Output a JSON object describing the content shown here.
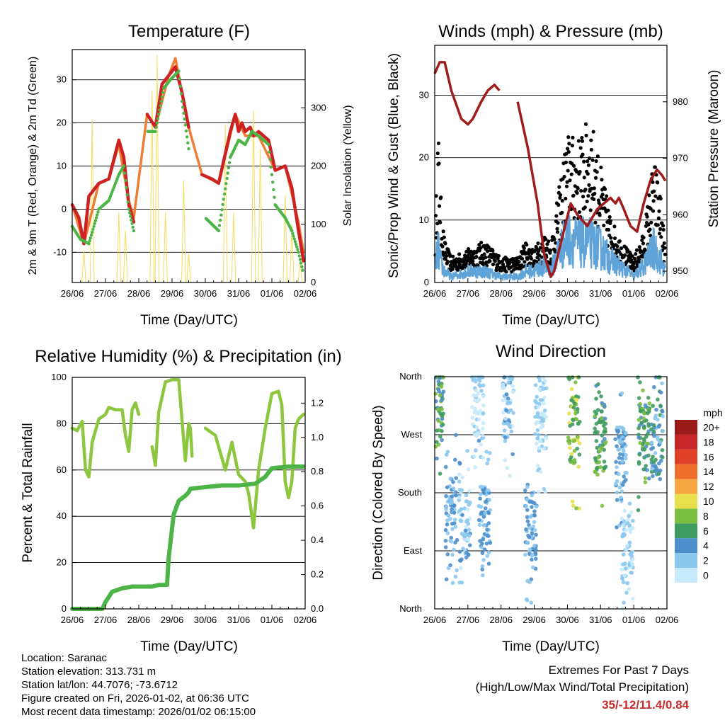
{
  "x_ticks": [
    "26/06",
    "27/06",
    "28/06",
    "29/06",
    "30/06",
    "31/06",
    "01/06",
    "02/06"
  ],
  "panels": {
    "temperature": {
      "title": "Temperature (F)",
      "xlabel": "Time (Day/UTC)",
      "ylabel_left": "2m & 9m T (Red, Orange) & 2m Td (Green)",
      "ylabel_right": "Solar Insolation (Yellow)"
    },
    "winds": {
      "title": "Winds (mph) & Pressure (mb)",
      "xlabel": "Time (Day/UTC)",
      "ylabel_left": "Sonic/Prop Wind & Gust (Blue, Black)",
      "ylabel_right": "Station Pressure (Maroon)"
    },
    "humidity": {
      "title": "Relative Humidity (%) & Precipitation (in)",
      "xlabel": "Time (Day/UTC)",
      "ylabel_left": "Percent & Total Rainfall"
    },
    "direction": {
      "title": "Wind Direction",
      "xlabel": "Time (Day/UTC)",
      "ylabel_left": "Direction (Colored By Speed)",
      "colorbar_title": "mph"
    }
  },
  "chart_data": [
    {
      "type": "line",
      "title": "Temperature (F)",
      "xlabel": "Time (Day/UTC)",
      "x_range_days": [
        0,
        7
      ],
      "ylim": [
        -17,
        37
      ],
      "yticks": [
        -10,
        0,
        10,
        20,
        30
      ],
      "y2lim": [
        0,
        400
      ],
      "y2ticks": [
        0,
        100,
        200,
        300
      ],
      "series": [
        {
          "name": "2m T",
          "color": "#cc2222",
          "x": [
            0,
            0.2,
            0.35,
            0.5,
            0.8,
            1.1,
            1.4,
            1.55,
            1.7,
            1.85,
            1.9,
            2.25,
            2.5,
            2.7,
            2.9,
            3.1,
            3.3,
            3.5,
            3.55,
            3.9,
            4.2,
            4.4,
            4.75,
            4.9,
            5.0,
            5.1,
            5.2,
            5.35,
            5.45,
            5.6,
            5.9,
            6.1,
            6.4,
            6.6,
            6.8,
            6.95
          ],
          "values": [
            1,
            -2,
            -8,
            3,
            6,
            7,
            16,
            12,
            1,
            -3,
            null,
            22,
            19,
            29,
            31,
            33,
            27,
            19,
            null,
            8,
            7,
            6,
            18,
            22,
            18,
            20,
            18,
            19,
            17,
            18,
            16,
            9,
            10,
            5,
            -5,
            -12
          ]
        },
        {
          "name": "9m T",
          "color": "#f07d33",
          "x": [
            0,
            0.35,
            0.8,
            1.1,
            1.4,
            1.7,
            1.85,
            2.25,
            2.5,
            2.9,
            3.1,
            3.3,
            3.5,
            3.9,
            4.4,
            4.9,
            5.2,
            5.6,
            6.1,
            6.4,
            6.8,
            6.95
          ],
          "values": [
            1,
            -8,
            6,
            7,
            15,
            2,
            -2,
            22,
            19,
            31,
            35,
            27,
            19,
            8,
            6,
            22,
            17,
            17,
            9,
            10,
            -3,
            -10
          ]
        },
        {
          "name": "2m Td",
          "color": "#4db548",
          "x": [
            0,
            0.25,
            0.5,
            0.8,
            1.1,
            1.4,
            1.55,
            1.7,
            1.85,
            1.9,
            2.25,
            2.5,
            2.75,
            2.95,
            3.2,
            3.3,
            3.5,
            3.55,
            4.0,
            4.4,
            4.75,
            5.0,
            5.2,
            5.4,
            5.6,
            5.9,
            6.1,
            6.4,
            6.6,
            6.8,
            6.95
          ],
          "values": [
            -4,
            -7,
            -8,
            0,
            2,
            8,
            10,
            0,
            -5,
            null,
            18,
            18,
            28,
            30,
            32,
            25,
            14,
            null,
            -2,
            -5,
            12,
            16,
            15,
            18,
            17,
            15,
            1,
            -2,
            -5,
            -10,
            -15
          ]
        },
        {
          "name": "Solar Insolation",
          "axis": "y2",
          "color": "#f4dc5c",
          "peaks_x": [
            0.35,
            0.6,
            1.4,
            1.6,
            2.4,
            2.55,
            2.8,
            3.35,
            3.5,
            4.6,
            4.85,
            5.45,
            5.65,
            6.4,
            6.6,
            6.85
          ],
          "peaks_y": [
            55,
            280,
            120,
            90,
            330,
            390,
            120,
            175,
            50,
            270,
            120,
            295,
            230,
            150,
            100,
            40
          ]
        }
      ]
    },
    {
      "type": "scatter",
      "title": "Winds (mph) & Pressure (mb)",
      "xlabel": "Time (Day/UTC)",
      "x_range_days": [
        0,
        7
      ],
      "ylim": [
        0,
        38
      ],
      "yticks": [
        0,
        10,
        20,
        30
      ],
      "y2lim": [
        948,
        990
      ],
      "y2ticks": [
        950,
        960,
        970,
        980
      ],
      "series": [
        {
          "name": "Wind gust",
          "color": "#000000",
          "x": [
            0,
            0.1,
            0.2,
            0.3,
            0.5,
            1.0,
            1.5,
            2.0,
            2.5,
            2.75,
            3.0,
            3.3,
            3.5,
            3.7,
            4.0,
            4.3,
            4.7,
            5.0,
            5.3,
            5.5,
            5.8,
            6.0,
            6.3,
            6.6,
            6.8,
            6.95
          ],
          "values": [
            4,
            19,
            9,
            5,
            3,
            4,
            5,
            3,
            3,
            5,
            4,
            6,
            5,
            10,
            18,
            17,
            20,
            14,
            8,
            6,
            4,
            3,
            6,
            15,
            11,
            4
          ]
        },
        {
          "name": "Wind speed",
          "color": "#5fa3d8",
          "x": [
            0,
            0.1,
            0.2,
            0.3,
            0.5,
            1.0,
            1.5,
            2.0,
            2.5,
            2.75,
            3.0,
            3.3,
            3.5,
            3.7,
            4.0,
            4.3,
            4.7,
            5.0,
            5.3,
            5.5,
            5.8,
            6.0,
            6.3,
            6.6,
            6.8,
            6.95
          ],
          "values": [
            2,
            6,
            3,
            2,
            1,
            2,
            2,
            1,
            1,
            2,
            2,
            3,
            2,
            5,
            8,
            7,
            7,
            6,
            4,
            3,
            2,
            1,
            3,
            6,
            4,
            2
          ]
        },
        {
          "name": "Station Pressure",
          "axis": "y2",
          "color": "#a01c1c",
          "x": [
            0,
            0.15,
            0.3,
            0.5,
            0.8,
            1.0,
            1.15,
            1.4,
            1.6,
            1.8,
            1.95,
            null,
            2.5,
            2.8,
            3.1,
            3.3,
            3.5,
            3.6,
            3.8,
            4.1,
            4.3,
            4.6,
            4.9,
            5.1,
            5.3,
            5.45,
            5.55,
            5.7,
            5.9,
            6.1,
            6.3,
            6.5,
            6.7,
            6.85,
            6.95
          ],
          "values": [
            985,
            987,
            987,
            982,
            977,
            976,
            977,
            980,
            982,
            983,
            982,
            null,
            980,
            972,
            962,
            953,
            949,
            950,
            955,
            962,
            960,
            958,
            961,
            962,
            963,
            962,
            963,
            961,
            958,
            957,
            962,
            966,
            968,
            967,
            966
          ]
        }
      ]
    },
    {
      "type": "line",
      "title": "Relative Humidity (%) & Precipitation (in)",
      "xlabel": "Time (Day/UTC)",
      "x_range_days": [
        0,
        7
      ],
      "ylim": [
        0,
        100
      ],
      "yticks": [
        0,
        20,
        40,
        60,
        80,
        100
      ],
      "y2lim": [
        0,
        1.35
      ],
      "y2ticks": [
        0.0,
        0.2,
        0.4,
        0.6,
        0.8,
        1.0,
        1.2
      ],
      "series": [
        {
          "name": "Relative Humidity",
          "color": "#8dc63f",
          "x": [
            0,
            0.15,
            0.3,
            0.4,
            0.5,
            0.6,
            0.8,
            1.0,
            1.1,
            1.3,
            1.5,
            1.6,
            1.7,
            1.8,
            1.9,
            2.0,
            null,
            2.4,
            2.5,
            2.6,
            2.8,
            3.0,
            3.2,
            3.4,
            3.5,
            3.55,
            3.6,
            null,
            4.0,
            4.3,
            4.6,
            4.8,
            5.0,
            5.2,
            5.3,
            5.45,
            5.6,
            5.8,
            6.0,
            6.2,
            6.3,
            6.4,
            6.5,
            6.6,
            6.7,
            6.8,
            6.95
          ],
          "values": [
            78,
            77,
            81,
            60,
            57,
            72,
            82,
            84,
            87,
            86,
            86,
            75,
            68,
            86,
            89,
            84,
            null,
            70,
            62,
            85,
            98,
            99,
            99,
            64,
            80,
            78,
            66,
            null,
            78,
            75,
            60,
            72,
            58,
            55,
            50,
            35,
            60,
            78,
            93,
            94,
            88,
            55,
            48,
            55,
            78,
            82,
            84
          ]
        },
        {
          "name": "Total Precipitation",
          "axis": "y2",
          "color": "#4db548",
          "x": [
            0,
            0.6,
            0.9,
            1.0,
            1.2,
            1.5,
            1.8,
            2.0,
            2.4,
            2.6,
            2.85,
            2.9,
            3.05,
            3.2,
            3.4,
            3.5,
            3.55,
            4.0,
            4.5,
            5.0,
            5.5,
            5.8,
            6.0,
            6.5,
            6.95
          ],
          "values": [
            0.0,
            0.0,
            0.0,
            0.04,
            0.1,
            0.12,
            0.13,
            0.13,
            0.13,
            0.14,
            0.14,
            0.3,
            0.55,
            0.63,
            0.66,
            0.68,
            0.7,
            0.71,
            0.72,
            0.72,
            0.73,
            0.77,
            0.82,
            0.83,
            0.83
          ]
        }
      ]
    },
    {
      "type": "scatter",
      "title": "Wind Direction",
      "xlabel": "Time (Day/UTC)",
      "x_range_days": [
        0,
        7
      ],
      "ylim": [
        0,
        360
      ],
      "ytick_labels": [
        "North",
        "East",
        "South",
        "West",
        "North"
      ],
      "yticks": [
        0,
        90,
        180,
        270,
        360
      ],
      "colorbar": {
        "title": "mph",
        "labels": [
          "0",
          "2",
          "4",
          "6",
          "8",
          "10",
          "12",
          "14",
          "16",
          "18",
          "20+"
        ],
        "colors": [
          "#c6e9fb",
          "#8cc8ee",
          "#4d8fcb",
          "#3f9b5f",
          "#7cbe3f",
          "#e8e04c",
          "#f6a543",
          "#ef6e2a",
          "#e04128",
          "#c52628",
          "#9b1b1b"
        ]
      },
      "clusters": [
        {
          "x_center": 0.1,
          "dir_center": 330,
          "speed": 6
        },
        {
          "x_center": 0.5,
          "dir_center": 150,
          "speed": 3
        },
        {
          "x_center": 0.9,
          "dir_center": 130,
          "speed": 2
        },
        {
          "x_center": 1.3,
          "dir_center": 320,
          "speed": 1
        },
        {
          "x_center": 1.5,
          "dir_center": 140,
          "speed": 3
        },
        {
          "x_center": 2.2,
          "dir_center": 320,
          "speed": 2
        },
        {
          "x_center": 2.9,
          "dir_center": 130,
          "speed": 3
        },
        {
          "x_center": 3.2,
          "dir_center": 300,
          "speed": 1
        },
        {
          "x_center": 4.2,
          "dir_center": 275,
          "speed": 8
        },
        {
          "x_center": 5.0,
          "dir_center": 265,
          "speed": 6
        },
        {
          "x_center": 5.6,
          "dir_center": 230,
          "speed": 3
        },
        {
          "x_center": 5.8,
          "dir_center": 100,
          "speed": 1
        },
        {
          "x_center": 6.3,
          "dir_center": 270,
          "speed": 6
        },
        {
          "x_center": 6.7,
          "dir_center": 260,
          "speed": 4
        }
      ]
    }
  ],
  "info": {
    "location": "Location: Saranac",
    "elevation": "Station elevation: 313.731 m",
    "latlon": "Station lat/lon: 44.7076; -73.6712",
    "created": "Figure created on Fri, 2026-01-02, at 06:36 UTC",
    "recent": "Most recent data timestamp: 2026/01/02 06:15:00"
  },
  "extremes": {
    "heading": "Extremes For Past 7 Days",
    "subheading": "(High/Low/Max Wind/Total Precipitation)",
    "value": "35/-12/11.4/0.84"
  }
}
